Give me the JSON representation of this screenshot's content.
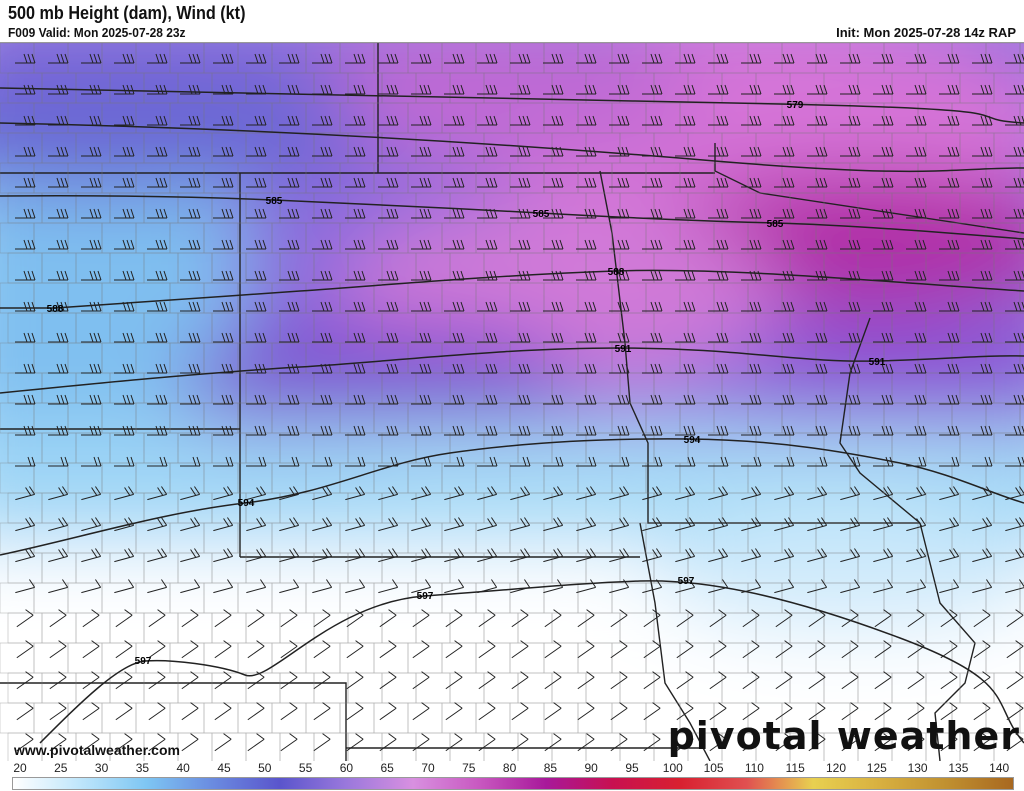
{
  "header": {
    "title": "500 mb Height (dam), Wind (kt)",
    "valid": "F009 Valid: Mon 2025-07-28 23z",
    "init": "Init: Mon 2025-07-28 14z RAP"
  },
  "map": {
    "contour_labels": [
      "579",
      "585",
      "585",
      "585",
      "588",
      "588",
      "591",
      "591",
      "594",
      "594",
      "597",
      "597",
      "597"
    ]
  },
  "footer": {
    "website": "www.pivotalweather.com",
    "logo": "pivotal weather"
  },
  "colorbar": {
    "unit": "kt",
    "ticks": [
      "20",
      "25",
      "30",
      "35",
      "40",
      "45",
      "50",
      "55",
      "60",
      "65",
      "70",
      "75",
      "80",
      "85",
      "90",
      "95",
      "100",
      "105",
      "110",
      "115",
      "120",
      "125",
      "130",
      "135",
      "140"
    ],
    "colors": [
      "#ffffff",
      "#bfe6fb",
      "#7ec6f3",
      "#6a8be0",
      "#5a55cc",
      "#9a78dc",
      "#d890e0",
      "#c858c0",
      "#a8189a",
      "#c81050",
      "#d82030",
      "#e05050",
      "#e8d050",
      "#d8b040",
      "#c09030",
      "#a86820"
    ]
  }
}
